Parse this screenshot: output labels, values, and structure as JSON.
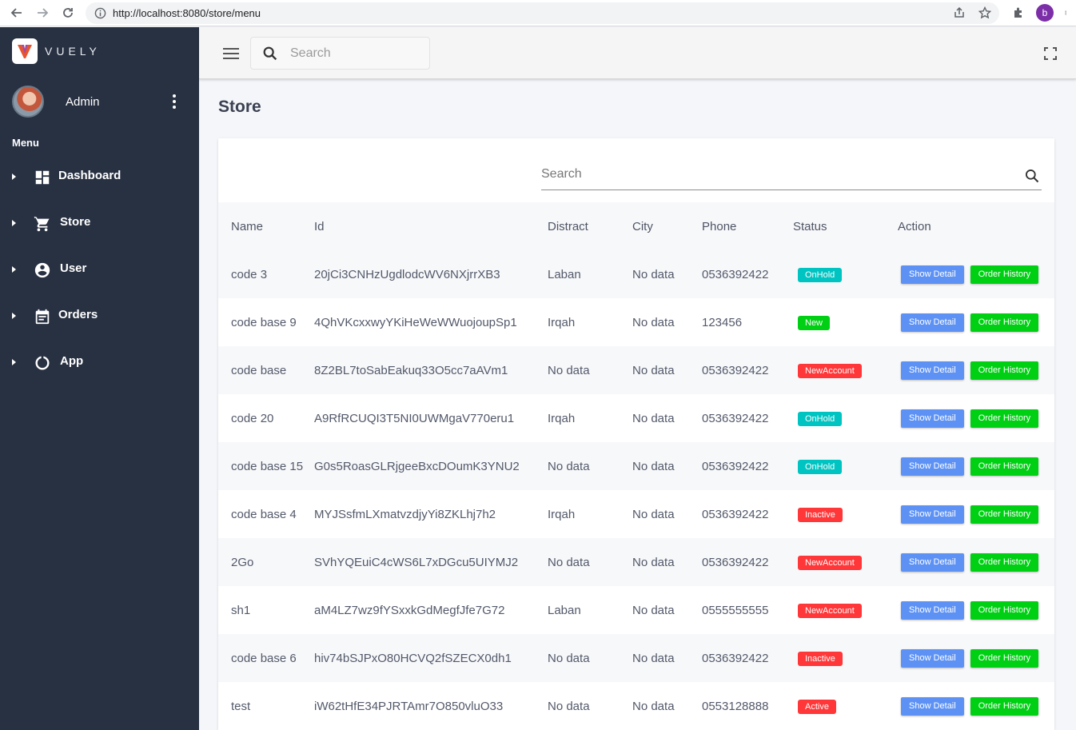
{
  "browser": {
    "url": "http://localhost:8080/store/menu",
    "profile_initial": "b"
  },
  "sidebar": {
    "brand": "VUELY",
    "user_name": "Admin",
    "menu_heading": "Menu",
    "items": [
      {
        "label": "Dashboard",
        "icon": "dashboard-icon"
      },
      {
        "label": "Store",
        "icon": "cart-icon"
      },
      {
        "label": "User",
        "icon": "account-icon"
      },
      {
        "label": "Orders",
        "icon": "calendar-icon"
      },
      {
        "label": "App",
        "icon": "app-icon"
      }
    ]
  },
  "topbar": {
    "search_placeholder": "Search"
  },
  "page": {
    "title": "Store",
    "table_search_placeholder": "Search"
  },
  "table": {
    "headers": [
      "Name",
      "Id",
      "Distract",
      "City",
      "Phone",
      "Status",
      "Action"
    ],
    "show_detail_label": "Show Detail",
    "order_history_label": "Order History",
    "rows": [
      {
        "name": "code 3",
        "id": "20jCi3CNHzUgdlodcWV6NXjrrXB3",
        "distract": "Laban",
        "city": "No data",
        "phone": "0536392422",
        "status": "OnHold"
      },
      {
        "name": "code base 9",
        "id": "4QhVKcxxwyYKiHeWeWWuojoupSp1",
        "distract": "Irqah",
        "city": "No data",
        "phone": "123456",
        "status": "New"
      },
      {
        "name": "code base",
        "id": "8Z2BL7toSabEakuq33O5cc7aAVm1",
        "distract": "No data",
        "city": "No data",
        "phone": "0536392422",
        "status": "NewAccount"
      },
      {
        "name": "code 20",
        "id": "A9RfRCUQI3T5NI0UWMgaV770eru1",
        "distract": "Irqah",
        "city": "No data",
        "phone": "0536392422",
        "status": "OnHold"
      },
      {
        "name": "code base 15",
        "id": "G0s5RoasGLRjgeeBxcDOumK3YNU2",
        "distract": "No data",
        "city": "No data",
        "phone": "0536392422",
        "status": "OnHold"
      },
      {
        "name": "code base 4",
        "id": "MYJSsfmLXmatvzdjyYi8ZKLhj7h2",
        "distract": "Irqah",
        "city": "No data",
        "phone": "0536392422",
        "status": "Inactive"
      },
      {
        "name": "2Go",
        "id": "SVhYQEuiC4cWS6L7xDGcu5UIYMJ2",
        "distract": "No data",
        "city": "No data",
        "phone": "0536392422",
        "status": "NewAccount"
      },
      {
        "name": "sh1",
        "id": "aM4LZ7wz9fYSxxkGdMegfJfe7G72",
        "distract": "Laban",
        "city": "No data",
        "phone": "0555555555",
        "status": "NewAccount"
      },
      {
        "name": "code base 6",
        "id": "hiv74bSJPxO80HCVQ2fSZECX0dh1",
        "distract": "No data",
        "city": "No data",
        "phone": "0536392422",
        "status": "Inactive"
      },
      {
        "name": "test",
        "id": "iW62tHfE34PJRTAmr7O850vluO33",
        "distract": "No data",
        "city": "No data",
        "phone": "0553128888",
        "status": "Active"
      }
    ]
  },
  "colors": {
    "sidebar_bg": "#283142",
    "status_onhold": "#00c4c1",
    "status_new": "#00d014",
    "status_newaccount": "#ff3739",
    "status_inactive": "#ff3739",
    "status_active": "#ff3739",
    "show_detail": "#5d92f4",
    "order_history": "#00d014"
  }
}
